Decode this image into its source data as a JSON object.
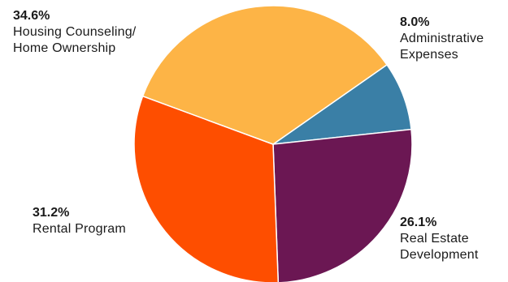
{
  "chart_data": {
    "type": "pie",
    "title": "",
    "slices": [
      {
        "pct_label": "8.0%",
        "value": 8.0,
        "label_lines": [
          "Administrative",
          "Expenses"
        ],
        "color": "#3a7fa6"
      },
      {
        "pct_label": "26.1%",
        "value": 26.1,
        "label_lines": [
          "Real Estate",
          "Development"
        ],
        "color": "#6b1753"
      },
      {
        "pct_label": "31.2%",
        "value": 31.2,
        "label_lines": [
          "Rental Program"
        ],
        "color": "#fe4e00"
      },
      {
        "pct_label": "34.6%",
        "value": 34.6,
        "label_lines": [
          "Housing Counseling/",
          "Home Ownership"
        ],
        "color": "#fdb446"
      }
    ]
  }
}
